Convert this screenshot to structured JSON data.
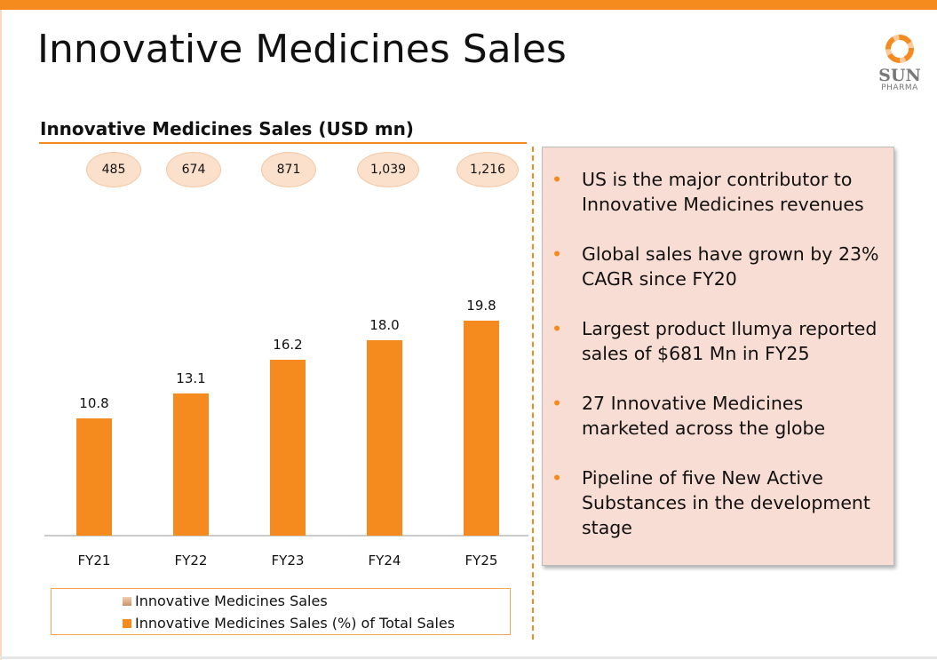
{
  "header": {
    "title": "Innovative Medicines Sales",
    "logo_text": "SUN PHARMA",
    "logo_main": "SUN",
    "logo_sub": "PHARMA"
  },
  "chart_data": {
    "type": "bar",
    "title": "Innovative Medicines Sales (USD mn)",
    "categories": [
      "FY21",
      "FY22",
      "FY23",
      "FY24",
      "FY25"
    ],
    "series": [
      {
        "name": "Innovative Medicines Sales",
        "values": [
          485,
          674,
          871,
          1039,
          1216
        ],
        "labels": [
          "485",
          "674",
          "871",
          "1,039",
          "1,216"
        ],
        "color": "#fbe0cc"
      },
      {
        "name": "Innovative Medicines Sales (%) of Total Sales",
        "values": [
          10.8,
          13.1,
          16.2,
          18.0,
          19.8
        ],
        "labels": [
          "10.8",
          "13.1",
          "16.2",
          "18.0",
          "19.8"
        ],
        "color": "#f58a1f"
      }
    ],
    "ylim": [
      0,
      19.8
    ],
    "grid": false,
    "legend": "bottom"
  },
  "bullets": [
    "US is the major contributor to Innovative Medicines revenues",
    "Global sales have grown by 23% CAGR since FY20",
    "Largest product Ilumya reported sales of $681 Mn in FY25",
    "27 Innovative Medicines marketed across the globe",
    "Pipeline of five New Active Substances in the development stage"
  ],
  "bullet_symbol": "•"
}
